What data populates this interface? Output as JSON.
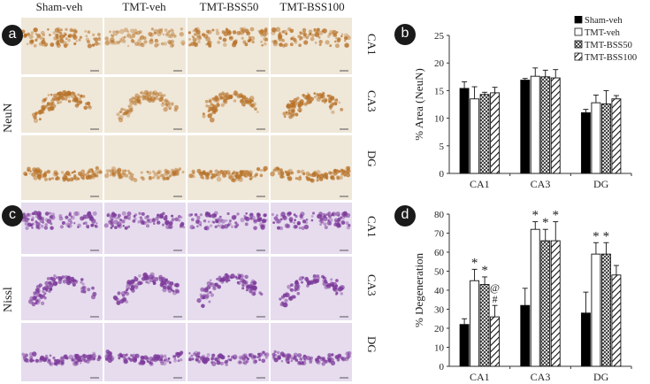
{
  "panels": {
    "a": "a",
    "b": "b",
    "c": "c",
    "d": "d"
  },
  "columns": [
    "Sham-veh",
    "TMT-veh",
    "TMT-BSS50",
    "TMT-BSS100"
  ],
  "stain_labels": {
    "neun": "NeuN",
    "nissl": "Nissl"
  },
  "regions": [
    "CA1",
    "CA3",
    "DG"
  ],
  "colors": {
    "neun_bg": "#efe7d8",
    "neun_cell": "#b8732a",
    "nissl_bg": "#e6dcee",
    "nissl_cell": "#7c3a9a"
  },
  "chart_data": [
    {
      "id": "b",
      "type": "bar",
      "ylabel": "% Area (NeuN)",
      "ylim": [
        0,
        25
      ],
      "yticks": [
        0,
        5,
        10,
        15,
        20,
        25
      ],
      "categories": [
        "CA1",
        "CA3",
        "DG"
      ],
      "legend_position": "top-right",
      "series": [
        {
          "name": "Sham-veh",
          "pattern": "solid",
          "values": [
            15.4,
            16.9,
            11.0
          ],
          "errors": [
            1.2,
            0.3,
            0.6
          ],
          "marks": [
            "",
            "",
            ""
          ]
        },
        {
          "name": "TMT-veh",
          "pattern": "open",
          "values": [
            13.5,
            17.6,
            12.8
          ],
          "errors": [
            2.2,
            1.5,
            1.4
          ],
          "marks": [
            "",
            "",
            ""
          ]
        },
        {
          "name": "TMT-BSS50",
          "pattern": "hatch",
          "values": [
            14.3,
            17.5,
            12.6
          ],
          "errors": [
            0.4,
            1.2,
            2.4
          ],
          "marks": [
            "",
            "",
            ""
          ]
        },
        {
          "name": "TMT-BSS100",
          "pattern": "stripe",
          "values": [
            14.6,
            17.3,
            13.5
          ],
          "errors": [
            1.0,
            1.5,
            0.6
          ],
          "marks": [
            "",
            "",
            ""
          ]
        }
      ]
    },
    {
      "id": "d",
      "type": "bar",
      "ylabel": "% Degeneration",
      "ylim": [
        0,
        80
      ],
      "yticks": [
        0,
        10,
        20,
        30,
        40,
        50,
        60,
        70,
        80
      ],
      "categories": [
        "CA1",
        "CA3",
        "DG"
      ],
      "legend_position": "none",
      "series": [
        {
          "name": "Sham-veh",
          "pattern": "solid",
          "values": [
            22,
            32,
            28
          ],
          "errors": [
            3,
            9,
            11
          ],
          "marks": [
            "",
            "",
            ""
          ]
        },
        {
          "name": "TMT-veh",
          "pattern": "open",
          "values": [
            45,
            72,
            59
          ],
          "errors": [
            6,
            4,
            6
          ],
          "marks": [
            "*",
            "*",
            "*"
          ]
        },
        {
          "name": "TMT-BSS50",
          "pattern": "hatch",
          "values": [
            43,
            66,
            59
          ],
          "errors": [
            4,
            6,
            6
          ],
          "marks": [
            "*",
            "*",
            "*"
          ]
        },
        {
          "name": "TMT-BSS100",
          "pattern": "stripe",
          "values": [
            26,
            66,
            48
          ],
          "errors": [
            6,
            10,
            5
          ],
          "marks": [
            "@\n#",
            "*",
            ""
          ]
        }
      ]
    }
  ]
}
